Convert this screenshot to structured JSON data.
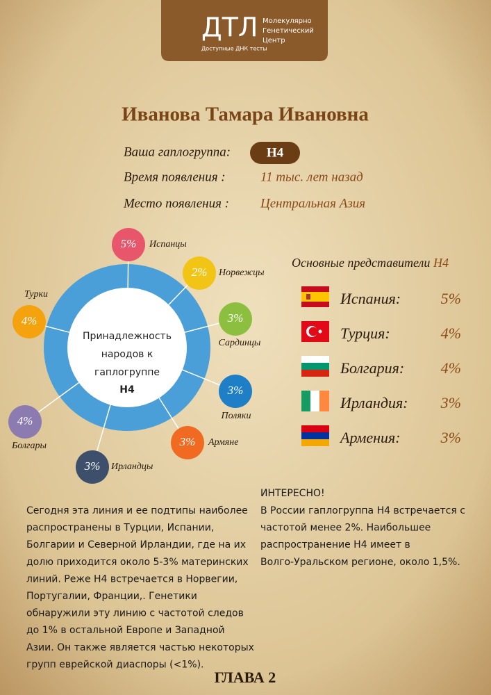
{
  "logo": {
    "name": "ДТЛ",
    "line1": "Молекулярно",
    "line2": "Генетический",
    "line3": "Центр",
    "tagline": "Доступные ДНК тесты"
  },
  "person": {
    "name": "Иванова Тамара Ивановна"
  },
  "info": [
    {
      "label": "Ваша гаплогруппа:",
      "value": "H4"
    },
    {
      "label": "Время появления :",
      "value": "11 тыс. лет назад"
    },
    {
      "label": "Место появления :",
      "value": "Центральная Азия"
    }
  ],
  "diagram": {
    "center": [
      "Принадлежность",
      "народов к",
      "гаплогруппе",
      "H4"
    ],
    "peoples": [
      {
        "name": "Испанцы",
        "share": "5%"
      },
      {
        "name": "Норвежцы",
        "share": "2%"
      },
      {
        "name": "Сардинцы",
        "share": "3%"
      },
      {
        "name": "Поляки",
        "share": "3%"
      },
      {
        "name": "Армяне",
        "share": "3%"
      },
      {
        "name": "Ирландцы",
        "share": "3%"
      },
      {
        "name": "Болгары",
        "share": "4%"
      },
      {
        "name": "Турки",
        "share": "4%"
      }
    ]
  },
  "representatives": {
    "title": "Основные представители",
    "haplogroup": "H4",
    "rows": [
      {
        "country": "Испания:",
        "share": "5%"
      },
      {
        "country": "Турция:",
        "share": "4%"
      },
      {
        "country": "Болгария:",
        "share": "4%"
      },
      {
        "country": "Ирландия:",
        "share": "3%"
      },
      {
        "country": "Армения:",
        "share": "3%"
      }
    ]
  },
  "left_text": [
    "Сегодня эта линия и ее подтипы наиболее",
    "распространены в Турции, Испании,",
    "Болгарии и Северной Ирландии, где на их",
    "долю приходится около 5-3% материнских",
    "линий. Реже H4 встречается в Норвегии,",
    "Португалии, Франции,. Генетики",
    "обнаружили эту линию с частотой следов",
    "до 1% в остальной Европе и Западной",
    "Азии. Он также является частью некоторых",
    "групп еврейской диаспоры (<1%)."
  ],
  "right_text": {
    "heading": "ИНТЕРЕСНО!",
    "lines": [
      "В России гаплогруппа H4 встречается с",
      "частотой менее 2%. Наибольшее",
      "распространение H4 имеет в",
      "Волго-Уральском регионе, около 1,5%."
    ]
  },
  "footer": "ГЛАВА 2"
}
